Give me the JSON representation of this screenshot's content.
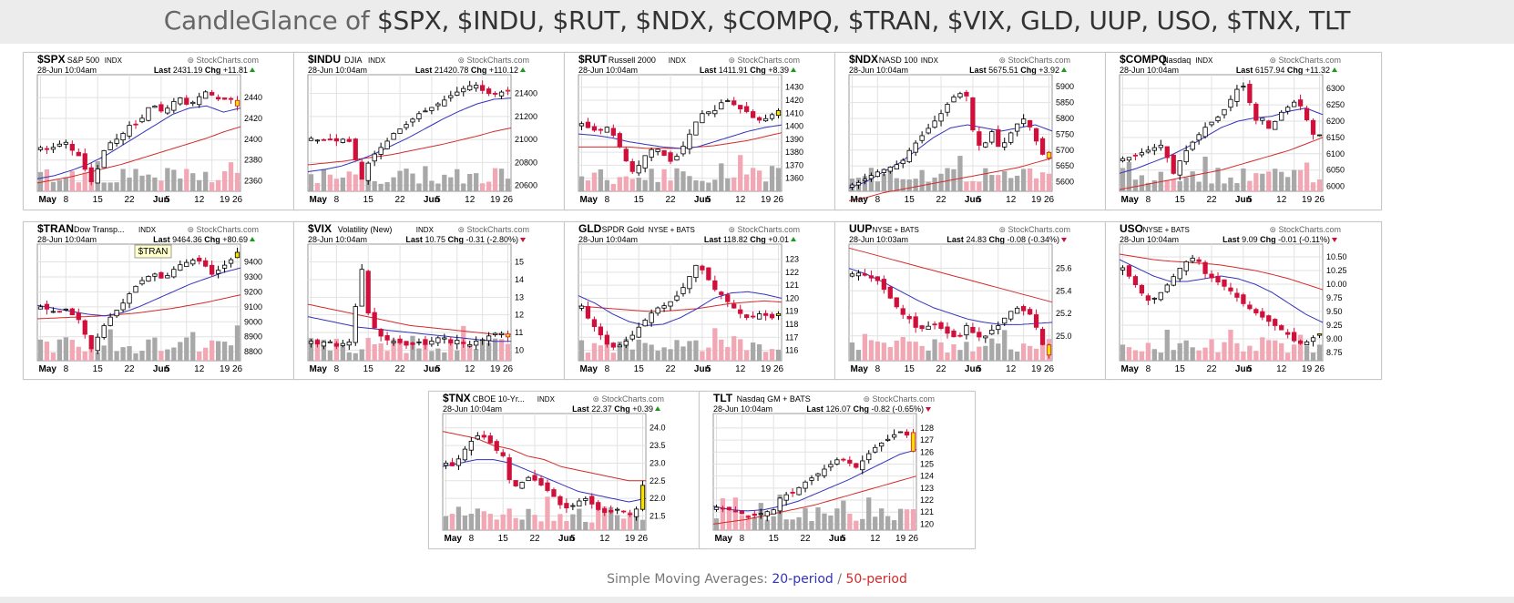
{
  "page": {
    "title_lead": "CandleGlance of ",
    "title_symbols": "$SPX, $INDU, $RUT, $NDX, $COMPQ, $TRAN, $VIX, GLD, UUP, USO, $TNX, TLT",
    "footer_lead": "Simple Moving Averages: ",
    "footer_sma20": "20-period",
    "footer_sep": " / ",
    "footer_sma50": "50-period",
    "colors": {
      "sma20": "#3333bb",
      "sma50": "#d42a2a",
      "up_candle": "#ffffff",
      "down_candle": "#d0103a",
      "volume_up": "#a8a8a8",
      "volume_down": "#f2a8b4",
      "last_bar": "#f5e000"
    }
  },
  "chart_data": [
    {
      "type": "candlestick",
      "symbol": "$SPX",
      "name": "S&P 500",
      "exchange": "INDX",
      "watermark": "StockCharts.com",
      "timestamp": "28-Jun 10:04am",
      "last_label": "Last",
      "last": "2431.19",
      "chg_label": "Chg",
      "chg": "+11.81",
      "direction": "up",
      "y_ticks": [
        "2440",
        "2420",
        "2400",
        "2380",
        "2360"
      ],
      "ylim": [
        2350,
        2455
      ],
      "x_ticks": [
        "May",
        "8",
        "15",
        "22",
        "Jun",
        "5",
        "12",
        "19",
        "26"
      ],
      "close_path": [
        2392,
        2390,
        2394,
        2398,
        2388,
        2382,
        2356,
        2372,
        2395,
        2398,
        2405,
        2415,
        2414,
        2430,
        2432,
        2425,
        2435,
        2440,
        2432,
        2438,
        2446,
        2442,
        2437,
        2440,
        2432
      ],
      "sma20_path": [
        2362,
        2365,
        2370,
        2376,
        2384,
        2394,
        2404,
        2414,
        2424,
        2430,
        2432,
        2426,
        2430
      ],
      "sma50_path": [
        2358,
        2361,
        2364,
        2368,
        2372,
        2376,
        2381,
        2386,
        2391,
        2396,
        2401,
        2407,
        2412
      ]
    },
    {
      "type": "candlestick",
      "symbol": "$INDU",
      "name": "DJIA",
      "exchange": "INDX",
      "watermark": "StockCharts.com",
      "timestamp": "28-Jun 10:04am",
      "last_label": "Last",
      "last": "21420.78",
      "chg_label": "Chg",
      "chg": "+110.12",
      "direction": "up",
      "y_ticks": [
        "21400",
        "21200",
        "21000",
        "20800",
        "20600"
      ],
      "ylim": [
        20550,
        21500
      ],
      "x_ticks": [
        "May",
        "8",
        "15",
        "22",
        "Jun",
        "5",
        "12",
        "19",
        "26"
      ],
      "close_path": [
        21010,
        20990,
        21000,
        20985,
        21005,
        20970,
        20620,
        20800,
        20900,
        20960,
        21050,
        21100,
        21150,
        21220,
        21250,
        21290,
        21330,
        21380,
        21420,
        21460,
        21480,
        21420,
        21390,
        21410,
        21420
      ],
      "sma20_path": [
        20720,
        20740,
        20770,
        20820,
        20880,
        20950,
        21020,
        21100,
        21180,
        21250,
        21310,
        21350,
        21360
      ],
      "sma50_path": [
        20780,
        20795,
        20810,
        20830,
        20850,
        20870,
        20900,
        20930,
        20960,
        20995,
        21030,
        21070,
        21100
      ]
    },
    {
      "type": "candlestick",
      "symbol": "$RUT",
      "name": "Russell 2000",
      "exchange": "INDX",
      "watermark": "StockCharts.com",
      "timestamp": "28-Jun 10:04am",
      "last_label": "Last",
      "last": "1411.91",
      "chg_label": "Chg",
      "chg": "+8.39",
      "direction": "up",
      "y_ticks": [
        "1430",
        "1420",
        "1410",
        "1400",
        "1390",
        "1380",
        "1370",
        "1360"
      ],
      "ylim": [
        1350,
        1434
      ],
      "x_ticks": [
        "May",
        "8",
        "15",
        "22",
        "Jun",
        "5",
        "12",
        "19",
        "26"
      ],
      "close_path": [
        1402,
        1398,
        1396,
        1400,
        1392,
        1380,
        1364,
        1370,
        1380,
        1384,
        1378,
        1372,
        1380,
        1392,
        1404,
        1412,
        1410,
        1418,
        1420,
        1414,
        1412,
        1406,
        1404,
        1408,
        1412
      ],
      "sma20_path": [
        1394,
        1393,
        1391,
        1388,
        1386,
        1384,
        1383,
        1384,
        1388,
        1392,
        1396,
        1399,
        1401
      ],
      "sma50_path": [
        1384,
        1384,
        1384,
        1384,
        1383,
        1383,
        1383,
        1384,
        1385,
        1387,
        1389,
        1392,
        1395
      ]
    },
    {
      "type": "candlestick",
      "symbol": "$NDX",
      "name": "NASD 100",
      "exchange": "INDX",
      "watermark": "StockCharts.com",
      "timestamp": "28-Jun 10:04am",
      "last_label": "Last",
      "last": "5675.51",
      "chg_label": "Chg",
      "chg": "+3.92",
      "direction": "up",
      "y_ticks": [
        "5900",
        "5850",
        "5800",
        "5750",
        "5700",
        "5650",
        "5600"
      ],
      "ylim": [
        5570,
        5915
      ],
      "x_ticks": [
        "May",
        "8",
        "15",
        "22",
        "Jun",
        "5",
        "12",
        "19",
        "26"
      ],
      "close_path": [
        5590,
        5600,
        5615,
        5630,
        5640,
        5650,
        5660,
        5700,
        5730,
        5760,
        5790,
        5820,
        5860,
        5880,
        5870,
        5720,
        5710,
        5760,
        5700,
        5740,
        5780,
        5800,
        5760,
        5690,
        5675
      ],
      "sma20_path": [
        5580,
        5600,
        5630,
        5660,
        5700,
        5740,
        5770,
        5780,
        5770,
        5760,
        5770,
        5780,
        5760
      ],
      "sma50_path": [
        5540,
        5550,
        5565,
        5575,
        5585,
        5595,
        5605,
        5615,
        5625,
        5635,
        5645,
        5660,
        5675
      ]
    },
    {
      "type": "candlestick",
      "symbol": "$COMPQ",
      "name": "Nasdaq",
      "exchange": "INDX",
      "watermark": "StockCharts.com",
      "timestamp": "28-Jun 10:04am",
      "last_label": "Last",
      "last": "6157.94",
      "chg_label": "Chg",
      "chg": "+11.32",
      "direction": "up",
      "y_ticks": [
        "6300",
        "6250",
        "6200",
        "6150",
        "6100",
        "6050",
        "6000"
      ],
      "ylim": [
        5985,
        6320
      ],
      "x_ticks": [
        "May",
        "8",
        "15",
        "22",
        "Jun",
        "5",
        "12",
        "19",
        "26"
      ],
      "close_path": [
        6085,
        6090,
        6100,
        6110,
        6120,
        6130,
        6030,
        6080,
        6120,
        6150,
        6180,
        6200,
        6220,
        6260,
        6300,
        6310,
        6200,
        6210,
        6170,
        6220,
        6240,
        6260,
        6240,
        6160,
        6158
      ],
      "sma20_path": [
        6040,
        6055,
        6075,
        6095,
        6120,
        6150,
        6180,
        6200,
        6210,
        6215,
        6230,
        6240,
        6220
      ],
      "sma50_path": [
        5990,
        6000,
        6010,
        6020,
        6030,
        6040,
        6050,
        6065,
        6080,
        6095,
        6110,
        6130,
        6150
      ]
    },
    {
      "type": "candlestick",
      "symbol": "$TRAN",
      "name": "Dow Transp...",
      "exchange": "INDX",
      "watermark": "StockCharts.com",
      "timestamp": "28-Jun 10:04am",
      "last_label": "Last",
      "last": "9464.36",
      "chg_label": "Chg",
      "chg": "+80.69",
      "direction": "up",
      "tooltip": "$TRAN",
      "y_ticks": [
        "9400",
        "9300",
        "9200",
        "9100",
        "9000",
        "8900",
        "8800"
      ],
      "ylim": [
        8740,
        9470
      ],
      "x_ticks": [
        "May",
        "8",
        "15",
        "22",
        "Jun",
        "5",
        "12",
        "19",
        "26"
      ],
      "close_path": [
        9100,
        9080,
        9060,
        9090,
        9040,
        9000,
        8800,
        8900,
        9000,
        9060,
        9120,
        9200,
        9260,
        9300,
        9320,
        9280,
        9340,
        9380,
        9400,
        9420,
        9380,
        9310,
        9360,
        9400,
        9464
      ],
      "sma20_path": [
        9110,
        9090,
        9070,
        9050,
        9040,
        9060,
        9100,
        9150,
        9200,
        9250,
        9290,
        9330,
        9360
      ],
      "sma50_path": [
        9020,
        9025,
        9030,
        9035,
        9040,
        9050,
        9060,
        9075,
        9090,
        9110,
        9130,
        9155,
        9180
      ]
    },
    {
      "type": "candlestick",
      "symbol": "$VIX",
      "name": "Volatility (New)",
      "exchange": "INDX",
      "watermark": "StockCharts.com",
      "timestamp": "28-Jun 10:04am",
      "last_label": "Last",
      "last": "10.75",
      "chg_label": "Chg",
      "chg": "-0.31 (-2.80%)",
      "direction": "down",
      "y_ticks": [
        "15",
        "14",
        "13",
        "12",
        "11",
        "10"
      ],
      "ylim": [
        9.4,
        15.6
      ],
      "x_ticks": [
        "May",
        "8",
        "15",
        "22",
        "Jun",
        "5",
        "12",
        "19",
        "26"
      ],
      "close_path": [
        10.5,
        10.3,
        10.6,
        10.2,
        10.4,
        10.5,
        15.2,
        12.0,
        11.0,
        10.6,
        10.5,
        10.4,
        10.2,
        10.5,
        10.3,
        10.6,
        10.8,
        10.4,
        10.6,
        10.2,
        10.5,
        10.6,
        10.9,
        11.0,
        10.75
      ],
      "sma20_path": [
        11.9,
        11.7,
        11.5,
        11.3,
        11.2,
        11.1,
        11.0,
        10.9,
        10.8,
        10.7,
        10.6,
        10.5,
        10.5
      ],
      "sma50_path": [
        12.6,
        12.4,
        12.2,
        12.0,
        11.8,
        11.6,
        11.4,
        11.3,
        11.2,
        11.1,
        11.0,
        10.9,
        10.9
      ]
    },
    {
      "type": "candlestick",
      "symbol": "GLD",
      "name": "SPDR Gold",
      "exchange": "NYSE + BATS",
      "watermark": "StockCharts.com",
      "timestamp": "28-Jun 10:04am",
      "last_label": "Last",
      "last": "118.82",
      "chg_label": "Chg",
      "chg": "+0.01",
      "direction": "up",
      "y_ticks": [
        "123",
        "122",
        "121",
        "120",
        "119",
        "118",
        "117",
        "116"
      ],
      "ylim": [
        115.2,
        123.6
      ],
      "x_ticks": [
        "May",
        "8",
        "15",
        "22",
        "Jun",
        "5",
        "12",
        "19",
        "26"
      ],
      "close_path": [
        119.4,
        118.2,
        117.5,
        116.5,
        116.2,
        116.5,
        117.0,
        117.8,
        118.5,
        119.2,
        119.4,
        119.8,
        120.4,
        121.5,
        122.6,
        122.0,
        120.8,
        120.3,
        119.6,
        119.0,
        118.5,
        118.6,
        118.9,
        118.4,
        118.82
      ],
      "sma20_path": [
        120.2,
        119.6,
        118.8,
        118.2,
        117.9,
        118.0,
        118.5,
        119.2,
        120.0,
        120.4,
        120.5,
        120.3,
        120.0
      ],
      "sma50_path": [
        119.4,
        119.3,
        119.2,
        119.1,
        119.0,
        119.0,
        119.1,
        119.2,
        119.4,
        119.6,
        119.7,
        119.8,
        119.7
      ]
    },
    {
      "type": "candlestick",
      "symbol": "UUP",
      "name": "",
      "exchange": "NYSE + BATS",
      "watermark": "StockCharts.com",
      "timestamp": "28-Jun 10:03am",
      "last_label": "Last",
      "last": "24.83",
      "chg_label": "Chg",
      "chg": "-0.08 (-0.34%)",
      "direction": "down",
      "y_ticks": [
        "25.6",
        "25.4",
        "25.2",
        "25.0"
      ],
      "ylim": [
        24.78,
        25.75
      ],
      "x_ticks": [
        "May",
        "8",
        "15",
        "22",
        "Jun",
        "5",
        "12",
        "19",
        "26"
      ],
      "close_path": [
        25.55,
        25.56,
        25.52,
        25.5,
        25.4,
        25.3,
        25.2,
        25.15,
        25.05,
        25.08,
        25.1,
        25.06,
        25.0,
        24.98,
        25.1,
        25.0,
        24.98,
        25.05,
        25.1,
        25.2,
        25.25,
        25.22,
        25.18,
        24.95,
        24.83
      ],
      "sma20_path": [
        25.6,
        25.55,
        25.48,
        25.4,
        25.32,
        25.25,
        25.2,
        25.15,
        25.12,
        25.1,
        25.1,
        25.11,
        25.12
      ],
      "sma50_path": [
        25.78,
        25.74,
        25.7,
        25.66,
        25.62,
        25.58,
        25.54,
        25.5,
        25.46,
        25.42,
        25.38,
        25.34,
        25.3
      ]
    },
    {
      "type": "candlestick",
      "symbol": "USO",
      "name": "",
      "exchange": "NYSE + BATS",
      "watermark": "StockCharts.com",
      "timestamp": "28-Jun 10:04am",
      "last_label": "Last",
      "last": "9.09",
      "chg_label": "Chg",
      "chg": "-0.01 (-0.11%)",
      "direction": "down",
      "y_ticks": [
        "10.50",
        "10.25",
        "10.00",
        "9.75",
        "9.50",
        "9.25",
        "9.00",
        "8.75"
      ],
      "ylim": [
        8.6,
        10.6
      ],
      "x_ticks": [
        "May",
        "8",
        "15",
        "22",
        "Jun",
        "5",
        "12",
        "19",
        "26"
      ],
      "close_path": [
        10.3,
        10.1,
        9.9,
        9.7,
        9.75,
        9.9,
        10.1,
        10.3,
        10.45,
        10.5,
        10.2,
        10.1,
        10.0,
        9.9,
        9.75,
        9.6,
        9.5,
        9.4,
        9.3,
        9.2,
        9.1,
        8.95,
        8.9,
        9.0,
        9.09
      ],
      "sma20_path": [
        10.45,
        10.3,
        10.15,
        10.05,
        10.05,
        10.1,
        10.15,
        10.1,
        10.0,
        9.85,
        9.65,
        9.45,
        9.3
      ],
      "sma50_path": [
        10.55,
        10.5,
        10.45,
        10.42,
        10.4,
        10.38,
        10.35,
        10.3,
        10.25,
        10.18,
        10.1,
        10.0,
        9.9
      ]
    },
    {
      "type": "candlestick",
      "symbol": "$TNX",
      "name": "CBOE 10-Yr...",
      "exchange": "INDX",
      "watermark": "StockCharts.com",
      "timestamp": "28-Jun 10:04am",
      "last_label": "Last",
      "last": "22.37",
      "chg_label": "Chg",
      "chg": "+0.39",
      "direction": "up",
      "y_ticks": [
        "24.0",
        "23.5",
        "23.0",
        "22.5",
        "22.0",
        "21.5"
      ],
      "ylim": [
        21.1,
        24.2
      ],
      "x_ticks": [
        "May",
        "8",
        "15",
        "22",
        "Jun",
        "5",
        "12",
        "19",
        "26"
      ],
      "close_path": [
        23.0,
        22.9,
        23.3,
        23.6,
        23.8,
        23.7,
        23.4,
        23.2,
        22.3,
        22.4,
        22.6,
        22.5,
        22.3,
        22.1,
        21.8,
        21.7,
        21.9,
        22.0,
        21.8,
        21.6,
        21.6,
        21.7,
        21.6,
        21.5,
        22.37
      ],
      "sma20_path": [
        22.9,
        23.0,
        23.1,
        23.1,
        23.0,
        22.8,
        22.6,
        22.4,
        22.2,
        22.1,
        22.0,
        21.9,
        22.0
      ],
      "sma50_path": [
        23.9,
        23.8,
        23.7,
        23.5,
        23.4,
        23.2,
        23.1,
        22.9,
        22.8,
        22.7,
        22.6,
        22.5,
        22.5
      ]
    },
    {
      "type": "candlestick",
      "symbol": "TLT",
      "name": "Nasdaq GM + BATS",
      "exchange": "",
      "watermark": "StockCharts.com",
      "timestamp": "28-Jun 10:04am",
      "last_label": "Last",
      "last": "126.07",
      "chg_label": "Chg",
      "chg": "-0.82 (-0.65%)",
      "direction": "down",
      "y_ticks": [
        "128",
        "127",
        "126",
        "125",
        "124",
        "123",
        "122",
        "121",
        "120"
      ],
      "ylim": [
        119.5,
        128.6
      ],
      "x_ticks": [
        "May",
        "8",
        "15",
        "22",
        "Jun",
        "5",
        "12",
        "19",
        "26"
      ],
      "close_path": [
        121.4,
        121.3,
        121.1,
        120.9,
        120.6,
        120.8,
        121.0,
        121.2,
        122.5,
        122.4,
        123.0,
        123.6,
        124.0,
        124.5,
        125.0,
        125.5,
        125.2,
        124.7,
        125.4,
        126.2,
        126.7,
        127.1,
        127.6,
        127.8,
        126.07
      ],
      "sma20_path": [
        121.5,
        121.2,
        121.1,
        121.2,
        121.5,
        121.9,
        122.5,
        123.1,
        123.7,
        124.4,
        125.1,
        125.8,
        126.2
      ],
      "sma50_path": [
        120.0,
        120.2,
        120.4,
        120.7,
        121.0,
        121.3,
        121.6,
        122.0,
        122.4,
        122.8,
        123.2,
        123.6,
        124.0
      ]
    }
  ]
}
